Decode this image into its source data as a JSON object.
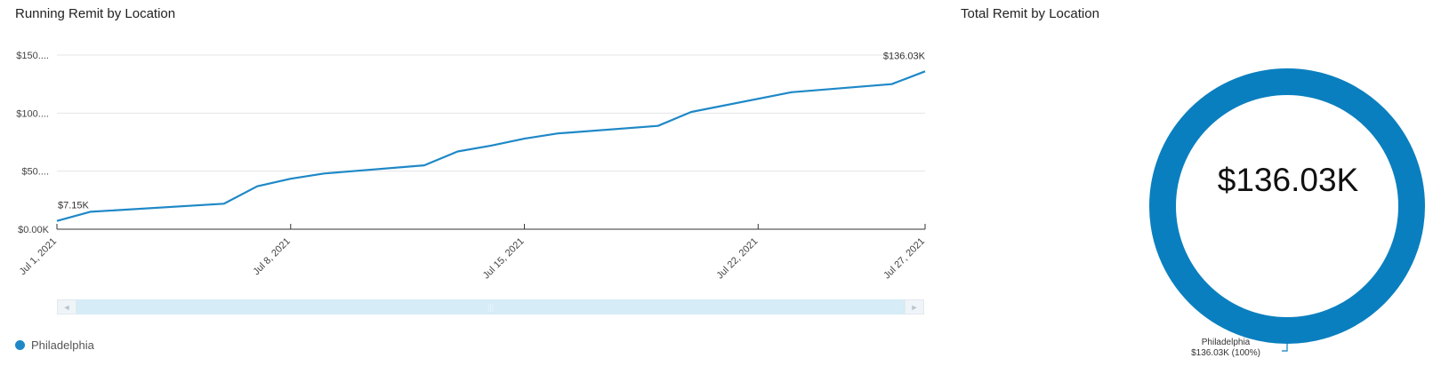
{
  "line_panel": {
    "title": "Running Remit by Location"
  },
  "donut_panel": {
    "title": "Total Remit by Location",
    "center_value": "$136.03K",
    "slice_label_name": "Philadelphia",
    "slice_label_value": "$136.03K (100%)"
  },
  "legend": {
    "items": [
      {
        "label": "Philadelphia",
        "color": "#1e88c7"
      }
    ]
  },
  "scrollbar": {
    "left_glyph": "◄",
    "right_glyph": "►",
    "grip_glyph": "|||"
  },
  "chart_data": [
    {
      "type": "line",
      "title": "Running Remit by Location",
      "x_type": "date",
      "xlim": [
        "2021-07-01",
        "2021-07-27"
      ],
      "x_tick_labels": [
        "Jul 1, 2021",
        "Jul 8, 2021",
        "Jul 15, 2021",
        "Jul 22, 2021",
        "Jul 27, 2021"
      ],
      "x_tick_dates": [
        "2021-07-01",
        "2021-07-08",
        "2021-07-15",
        "2021-07-22",
        "2021-07-27"
      ],
      "ylim": [
        0,
        150
      ],
      "y_ticks": [
        0,
        50,
        100,
        150
      ],
      "y_tick_labels": [
        "$0.00K",
        "$50....",
        "$100....",
        "$150...."
      ],
      "grid": true,
      "series": [
        {
          "name": "Philadelphia",
          "color": "#1e88c7",
          "x": [
            "2021-07-01",
            "2021-07-02",
            "2021-07-06",
            "2021-07-07",
            "2021-07-08",
            "2021-07-09",
            "2021-07-12",
            "2021-07-13",
            "2021-07-14",
            "2021-07-15",
            "2021-07-16",
            "2021-07-19",
            "2021-07-20",
            "2021-07-23",
            "2021-07-26",
            "2021-07-27"
          ],
          "values": [
            7.15,
            15.0,
            22.0,
            37.0,
            43.5,
            48.0,
            55.0,
            67.0,
            72.0,
            78.0,
            82.5,
            89.0,
            101.0,
            118.0,
            125.0,
            136.03
          ]
        }
      ],
      "data_labels": [
        {
          "x": "2021-07-01",
          "text": "$7.15K"
        },
        {
          "x": "2021-07-27",
          "text": "$136.03K"
        }
      ]
    },
    {
      "type": "pie",
      "title": "Total Remit by Location",
      "donut": true,
      "categories": [
        "Philadelphia"
      ],
      "values": [
        136.03
      ],
      "color": "#0a7fbf"
    }
  ]
}
